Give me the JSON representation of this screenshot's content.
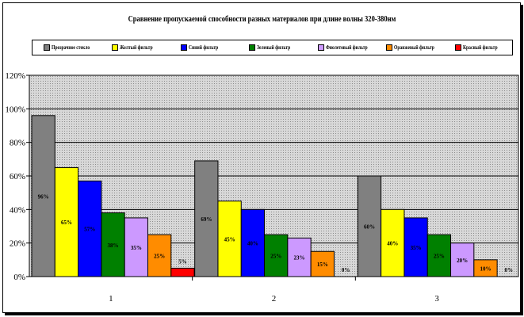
{
  "chart_data": {
    "type": "bar",
    "title": "Сравнение пропускаемой способности разных материалов при длине волны 320-380нм",
    "xlabel": "",
    "ylabel": "",
    "categories": [
      "1",
      "2",
      "3"
    ],
    "ylim": [
      0,
      120
    ],
    "yticks": [
      "0%",
      "20%",
      "40%",
      "60%",
      "80%",
      "100%",
      "120%"
    ],
    "grid": true,
    "legend_position": "top",
    "series": [
      {
        "name": "Прозрачное стекло",
        "color": "#808080",
        "values": [
          96,
          69,
          60
        ],
        "labels": [
          "96%",
          "69%",
          "60%"
        ]
      },
      {
        "name": "Желтый фильтр",
        "color": "#ffff00",
        "values": [
          65,
          45,
          40
        ],
        "labels": [
          "65%",
          "45%",
          "40%"
        ]
      },
      {
        "name": "Синий фильтр",
        "color": "#0000ff",
        "values": [
          57,
          40,
          35
        ],
        "labels": [
          "57%",
          "40%",
          "35%"
        ]
      },
      {
        "name": "Зеленый фильтр",
        "color": "#008000",
        "values": [
          38,
          25,
          25
        ],
        "labels": [
          "38%",
          "25%",
          "25%"
        ]
      },
      {
        "name": "Фиолетовый фильтр",
        "color": "#cc99ff",
        "values": [
          35,
          23,
          20
        ],
        "labels": [
          "35%",
          "23%",
          "20%"
        ]
      },
      {
        "name": "Оранжевый фильтр",
        "color": "#ff8c00",
        "values": [
          25,
          15,
          10
        ],
        "labels": [
          "25%",
          "15%",
          "10%"
        ]
      },
      {
        "name": "Красный фильтр",
        "color": "#ff0000",
        "values": [
          5,
          0,
          0
        ],
        "labels": [
          "5%",
          "0%",
          "0%"
        ]
      }
    ]
  }
}
